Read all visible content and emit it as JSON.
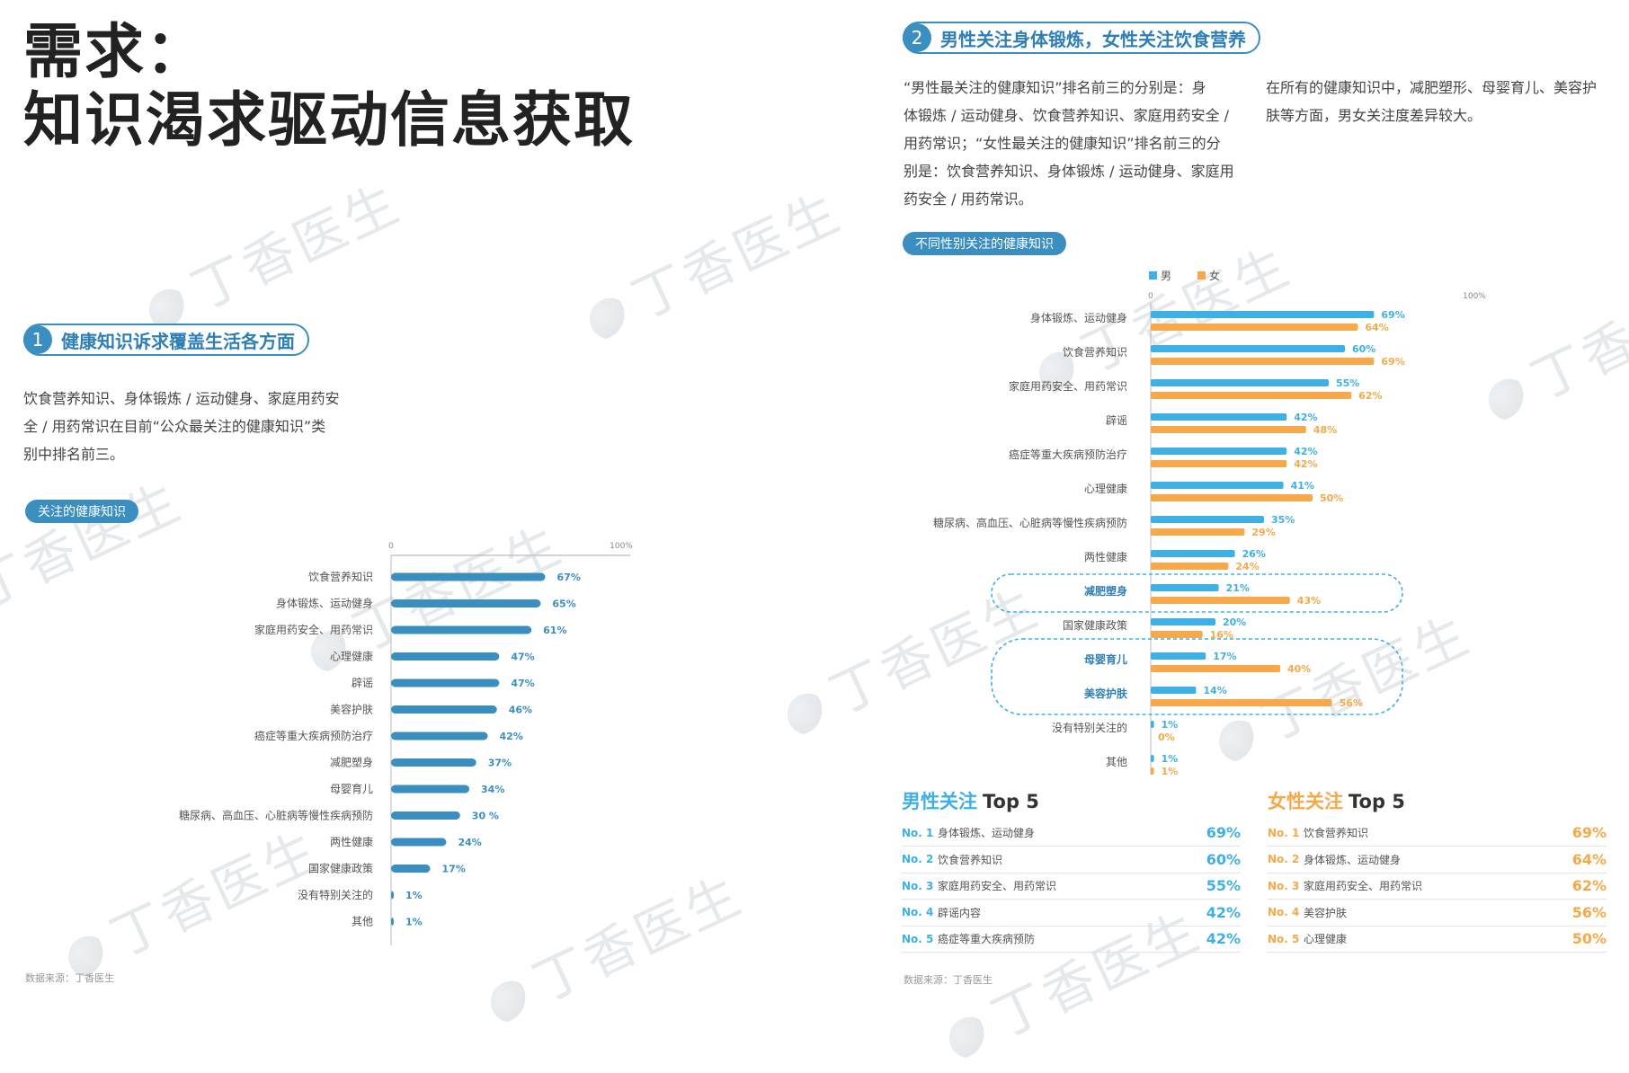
{
  "watermark": "丁香医生",
  "title_line1": "需求：",
  "title_line2": "知识渴求驱动信息获取",
  "section1": {
    "num": "1",
    "title": "健康知识诉求覆盖生活各方面",
    "para": [
      "饮食营养知识、身体锻炼 / 运动健身、家庭用药安",
      "全 / 用药常识在目前“公众最关注的健康知识”类",
      "别中排名前三。"
    ],
    "tag": "关注的健康知识",
    "source": "数据来源：丁香医生"
  },
  "section2": {
    "num": "2",
    "title": "男性关注身体锻炼，女性关注饮食营养",
    "para_left": [
      "“男性最关注的健康知识”排名前三的分别是：身",
      "体锻炼 / 运动健身、饮食营养知识、家庭用药安全 /",
      "用药常识；“女性最关注的健康知识”排名前三的分",
      "别是：饮食营养知识、身体锻炼 / 运动健身、家庭用",
      "药安全 / 用药常识。"
    ],
    "para_right": [
      "在所有的健康知识中，减肥塑形、母婴育儿、美容护",
      "肤等方面，男女关注度差异较大。"
    ],
    "tag": "不同性别关注的健康知识",
    "source": "数据来源：丁香医生"
  },
  "colors": {
    "blue": "#3a8fc0",
    "male": "#3fb0e3",
    "female": "#f5a94a"
  },
  "chart_data": [
    {
      "type": "bar",
      "orientation": "horizontal",
      "title": "关注的健康知识",
      "axis_ticks": [
        "0",
        "100%"
      ],
      "xlim": [
        0,
        100
      ],
      "categories": [
        "饮食营养知识",
        "身体锻炼、运动健身",
        "家庭用药安全、用药常识",
        "心理健康",
        "辟谣",
        "美容护肤",
        "癌症等重大疾病预防治疗",
        "减肥塑身",
        "母婴育儿",
        "糖尿病、高血压、心脏病等慢性疾病预防",
        "两性健康",
        "国家健康政策",
        "没有特别关注的",
        "其他"
      ],
      "values": [
        67,
        65,
        61,
        47,
        47,
        46,
        42,
        37,
        34,
        30,
        24,
        17,
        1,
        1
      ],
      "value_labels": [
        "67%",
        "65%",
        "61%",
        "47%",
        "47%",
        "46%",
        "42%",
        "37%",
        "34%",
        "30 %",
        "24%",
        "17%",
        "1%",
        "1%"
      ]
    },
    {
      "type": "bar",
      "orientation": "horizontal",
      "title": "不同性别关注的健康知识",
      "axis_ticks": [
        "0",
        "100%"
      ],
      "xlim": [
        0,
        100
      ],
      "legend_position": "top",
      "categories": [
        "身体锻炼、运动健身",
        "饮食营养知识",
        "家庭用药安全、用药常识",
        "辟谣",
        "癌症等重大疾病预防治疗",
        "心理健康",
        "糖尿病、高血压、心脏病等慢性疾病预防",
        "两性健康",
        "减肥塑身",
        "国家健康政策",
        "母婴育儿",
        "美容护肤",
        "没有特别关注的",
        "其他"
      ],
      "highlighted": [
        "减肥塑身",
        "母婴育儿",
        "美容护肤"
      ],
      "series": [
        {
          "name": "男",
          "values": [
            69,
            60,
            55,
            42,
            42,
            41,
            35,
            26,
            21,
            20,
            17,
            14,
            1,
            1
          ]
        },
        {
          "name": "女",
          "values": [
            64,
            69,
            62,
            48,
            42,
            50,
            29,
            24,
            43,
            16,
            40,
            56,
            0,
            1
          ]
        }
      ]
    }
  ],
  "top5_male": {
    "title_colored": "男性关注",
    "title_rest": "Top 5",
    "rows": [
      {
        "no": "No. 1",
        "label": "身体锻炼、运动健身",
        "value": "69%"
      },
      {
        "no": "No. 2",
        "label": "饮食营养知识",
        "value": "60%"
      },
      {
        "no": "No. 3",
        "label": "家庭用药安全、用药常识",
        "value": "55%"
      },
      {
        "no": "No. 4",
        "label": "辟谣内容",
        "value": "42%"
      },
      {
        "no": "No. 5",
        "label": "癌症等重大疾病预防",
        "value": "42%"
      }
    ]
  },
  "top5_female": {
    "title_colored": "女性关注",
    "title_rest": "Top 5",
    "rows": [
      {
        "no": "No. 1",
        "label": "饮食营养知识",
        "value": "69%"
      },
      {
        "no": "No. 2",
        "label": "身体锻炼、运动健身",
        "value": "64%"
      },
      {
        "no": "No. 3",
        "label": "家庭用药安全、用药常识",
        "value": "62%"
      },
      {
        "no": "No. 4",
        "label": "美容护肤",
        "value": "56%"
      },
      {
        "no": "No. 5",
        "label": "心理健康",
        "value": "50%"
      }
    ]
  }
}
